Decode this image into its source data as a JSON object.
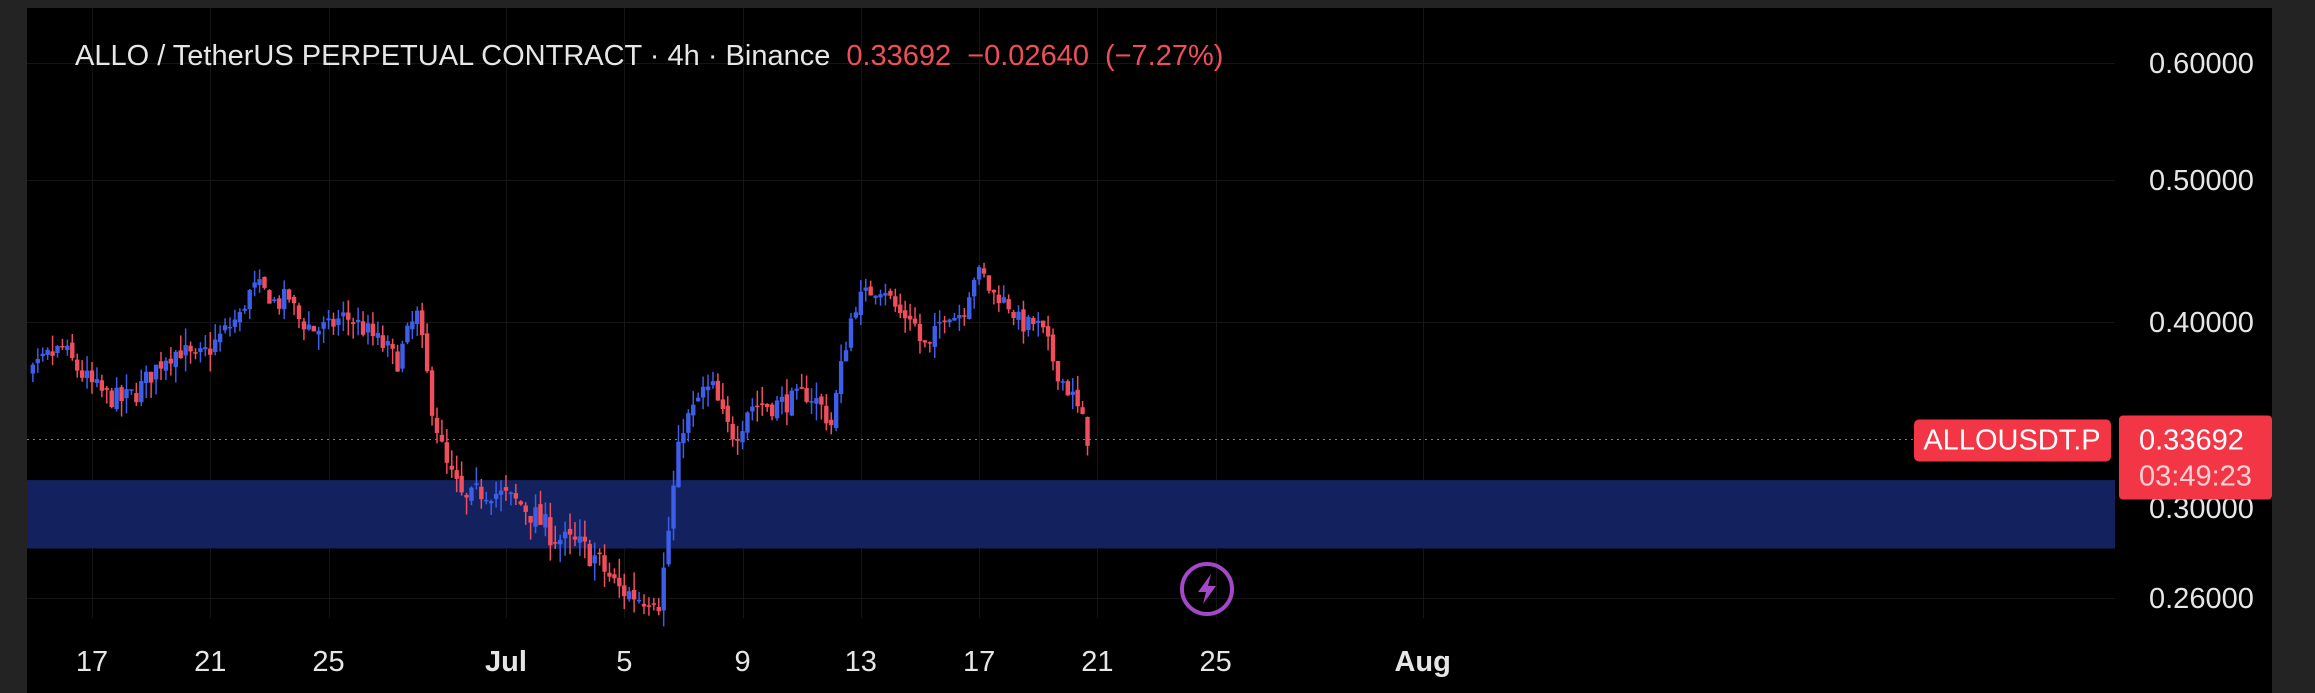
{
  "header": {
    "symbol": "ALLO / TetherUS PERPETUAL CONTRACT · 4h · Binance",
    "last_price": "0.33692",
    "change": "−0.02640",
    "change_pct": "(−7.27%)"
  },
  "price_scale": {
    "labels": [
      "0.60000",
      "0.50000",
      "0.40000",
      "0.30000",
      "0.26000"
    ],
    "values": [
      0.6,
      0.5,
      0.4,
      0.3,
      0.26
    ]
  },
  "time_scale": {
    "labels": [
      "17",
      "21",
      "25",
      "Jul",
      "5",
      "9",
      "13",
      "17",
      "21",
      "25",
      "Aug"
    ]
  },
  "last_price_marker": {
    "ticker": "ALLOUSDT.P",
    "price": "0.33692",
    "countdown": "03:49:23",
    "value": 0.33692
  },
  "zone": {
    "low": 0.282,
    "high": 0.315
  },
  "colors": {
    "up": "#3d5ee8",
    "down": "#ef4e5c",
    "zone": "#13225f",
    "marker": "#f23645",
    "background": "#000000",
    "grid": "#151515",
    "text": "#e6e6e6",
    "lightning_badge": "#a447c9"
  },
  "icons": {
    "lightning": "lightning-bolt-icon"
  },
  "chart_data": {
    "type": "candlestick",
    "timeframe": "4h",
    "x_axis": [
      "17",
      "21",
      "25",
      "Jul",
      "5",
      "9",
      "13",
      "17",
      "21",
      "25",
      "Aug"
    ],
    "y_ticks": [
      0.6,
      0.5,
      0.4,
      0.3,
      0.26
    ],
    "last_price": 0.33692,
    "series": [
      {
        "name": "ALLOUSDT.P",
        "close_path": [
          [
            14.0,
            0.355
          ],
          [
            14.5,
            0.362
          ],
          [
            15.0,
            0.372
          ],
          [
            15.5,
            0.381
          ],
          [
            16.0,
            0.386
          ],
          [
            16.5,
            0.375
          ],
          [
            17.0,
            0.366
          ],
          [
            17.5,
            0.36
          ],
          [
            18.0,
            0.358
          ],
          [
            18.5,
            0.362
          ],
          [
            19.0,
            0.372
          ],
          [
            19.5,
            0.382
          ],
          [
            20.0,
            0.385
          ],
          [
            20.5,
            0.379
          ],
          [
            21.0,
            0.386
          ],
          [
            21.5,
            0.395
          ],
          [
            22.0,
            0.404
          ],
          [
            22.3,
            0.42
          ],
          [
            22.6,
            0.426
          ],
          [
            23.0,
            0.418
          ],
          [
            23.3,
            0.412
          ],
          [
            23.6,
            0.42
          ],
          [
            24.0,
            0.402
          ],
          [
            24.5,
            0.396
          ],
          [
            25.0,
            0.397
          ],
          [
            25.5,
            0.404
          ],
          [
            26.0,
            0.399
          ],
          [
            26.5,
            0.392
          ],
          [
            27.0,
            0.385
          ],
          [
            27.3,
            0.378
          ],
          [
            27.7,
            0.394
          ],
          [
            28.0,
            0.405
          ],
          [
            28.2,
            0.384
          ],
          [
            28.5,
            0.355
          ],
          [
            28.8,
            0.334
          ],
          [
            29.0,
            0.322
          ],
          [
            29.3,
            0.313
          ],
          [
            29.6,
            0.302
          ],
          [
            30.0,
            0.308
          ],
          [
            30.5,
            0.309
          ],
          [
            31.0,
            0.306
          ],
          [
            31.5,
            0.302
          ],
          [
            32.0,
            0.296
          ],
          [
            32.5,
            0.289
          ],
          [
            33.0,
            0.285
          ],
          [
            33.5,
            0.283
          ],
          [
            34.0,
            0.278
          ],
          [
            34.4,
            0.271
          ],
          [
            34.8,
            0.264
          ],
          [
            35.2,
            0.262
          ],
          [
            35.6,
            0.26
          ],
          [
            36.0,
            0.262
          ],
          [
            36.2,
            0.258
          ],
          [
            36.5,
            0.29
          ],
          [
            36.8,
            0.327
          ],
          [
            37.0,
            0.345
          ],
          [
            37.3,
            0.351
          ],
          [
            37.6,
            0.362
          ],
          [
            38.0,
            0.364
          ],
          [
            38.3,
            0.35
          ],
          [
            38.6,
            0.34
          ],
          [
            38.9,
            0.342
          ],
          [
            39.2,
            0.355
          ],
          [
            39.6,
            0.356
          ],
          [
            40.0,
            0.355
          ],
          [
            40.4,
            0.357
          ],
          [
            40.8,
            0.358
          ],
          [
            41.2,
            0.362
          ],
          [
            41.6,
            0.356
          ],
          [
            42.0,
            0.345
          ],
          [
            42.3,
            0.372
          ],
          [
            42.6,
            0.398
          ],
          [
            42.9,
            0.416
          ],
          [
            43.2,
            0.42
          ],
          [
            43.5,
            0.423
          ],
          [
            43.8,
            0.425
          ],
          [
            44.1,
            0.412
          ],
          [
            44.4,
            0.404
          ],
          [
            44.7,
            0.405
          ],
          [
            45.0,
            0.39
          ],
          [
            45.3,
            0.384
          ],
          [
            45.6,
            0.397
          ],
          [
            45.9,
            0.408
          ],
          [
            46.2,
            0.404
          ],
          [
            46.5,
            0.409
          ],
          [
            46.8,
            0.432
          ],
          [
            47.1,
            0.435
          ],
          [
            47.4,
            0.42
          ],
          [
            47.7,
            0.418
          ],
          [
            48.0,
            0.412
          ],
          [
            48.3,
            0.402
          ],
          [
            48.6,
            0.398
          ],
          [
            48.9,
            0.4
          ],
          [
            49.2,
            0.392
          ],
          [
            49.5,
            0.38
          ],
          [
            49.8,
            0.369
          ],
          [
            50.1,
            0.362
          ],
          [
            50.4,
            0.35
          ],
          [
            50.7,
            0.337
          ]
        ]
      }
    ],
    "zone": {
      "low": 0.282,
      "high": 0.315
    },
    "legend": "none",
    "grid": true
  }
}
